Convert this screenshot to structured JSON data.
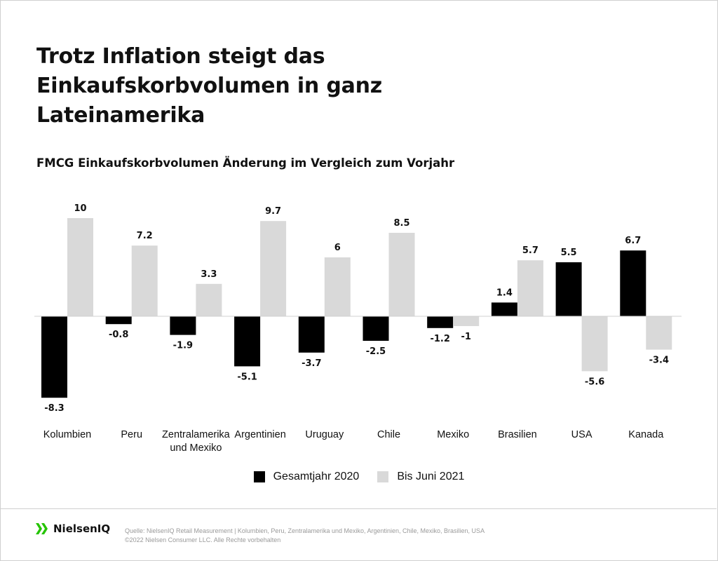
{
  "title": "Trotz Inflation steigt das Einkaufskorbvolumen in ganz Lateinamerika",
  "subtitle": "FMCG Einkaufskorbvolumen Änderung im Vergleich zum Vorjahr",
  "chart_data": {
    "type": "bar",
    "categories": [
      "Kolumbien",
      "Peru",
      "Zentralamerika und Mexiko",
      "Argentinien",
      "Uruguay",
      "Chile",
      "Mexiko",
      "Brasilien",
      "USA",
      "Kanada"
    ],
    "category_lines": [
      [
        "Kolumbien"
      ],
      [
        "Peru"
      ],
      [
        "Zentralamerika",
        "und Mexiko"
      ],
      [
        "Argentinien"
      ],
      [
        "Uruguay"
      ],
      [
        "Chile"
      ],
      [
        "Mexiko"
      ],
      [
        "Brasilien"
      ],
      [
        "USA"
      ],
      [
        "Kanada"
      ]
    ],
    "series": [
      {
        "name": "Gesamtjahr 2020",
        "color": "#000000",
        "values": [
          -8.3,
          -0.8,
          -1.9,
          -5.1,
          -3.7,
          -2.5,
          -1.2,
          1.4,
          5.5,
          6.7
        ]
      },
      {
        "name": "Bis Juni 2021",
        "color": "#d9d9d9",
        "values": [
          10,
          7.2,
          3.3,
          9.7,
          6,
          8.5,
          -1,
          5.7,
          -5.6,
          -3.4
        ]
      }
    ],
    "ylim": [
      -8.3,
      10
    ],
    "grid": false,
    "legend_position": "bottom-center"
  },
  "footer": {
    "logo_text": "NielsenIQ",
    "source_line1": "Quelle: NielsenIQ Retail Measurement | Kolumbien, Peru, Zentralamerika und Mexiko, Argentinien, Chile, Mexiko, Brasilien, USA",
    "source_line2": "©2022 Nielsen Consumer LLC. Alle Rechte vorbehalten",
    "logo_color": "#25c400"
  }
}
